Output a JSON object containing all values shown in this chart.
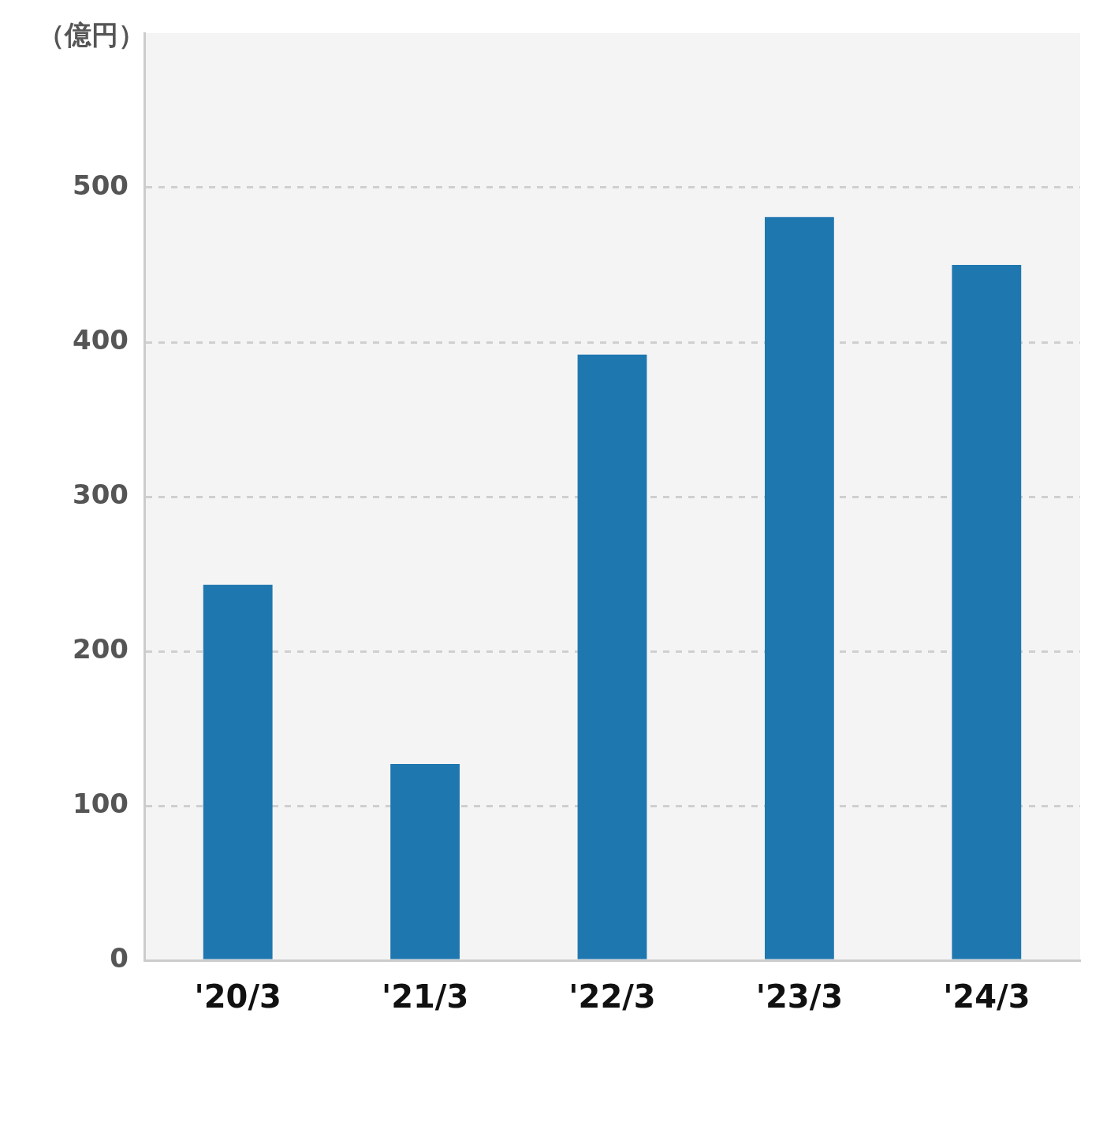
{
  "chart_data": {
    "type": "bar",
    "ylabel": "（億円）",
    "categories": [
      "'20/3",
      "'21/3",
      "'22/3",
      "'23/3",
      "'24/3"
    ],
    "values": [
      243,
      127,
      392,
      481,
      450
    ],
    "color": "#1f77b0",
    "ylim": [
      0,
      600
    ],
    "yticks": [
      0,
      100,
      200,
      300,
      400,
      500
    ],
    "grid": "y",
    "legend": false
  }
}
